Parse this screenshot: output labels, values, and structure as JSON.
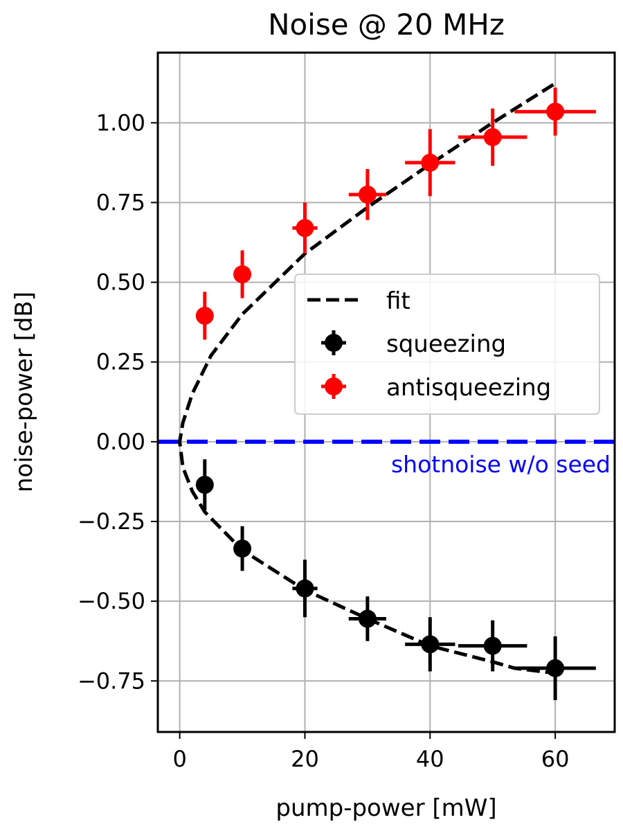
{
  "chart_data": {
    "type": "scatter",
    "title": "Noise @ 20 MHz",
    "xlabel": "pump-power [mW]",
    "ylabel": "noise-power [dB]",
    "xlim": [
      -3.5,
      69.5
    ],
    "ylim": [
      -0.91,
      1.22
    ],
    "xticks": [
      0,
      20,
      40,
      60
    ],
    "yticks": [
      -0.75,
      -0.5,
      -0.25,
      0.0,
      0.25,
      0.5,
      0.75,
      1.0
    ],
    "xtick_labels": [
      "0",
      "20",
      "40",
      "60"
    ],
    "ytick_labels": [
      "−0.75",
      "−0.50",
      "−0.25",
      "0.00",
      "0.25",
      "0.50",
      "0.75",
      "1.00"
    ],
    "grid": true,
    "legend_position": "center-right",
    "series": [
      {
        "name": "fit",
        "kind": "line",
        "style": "dashed",
        "color": "#000000",
        "points": [
          [
            59.7,
            1.12
          ],
          [
            50,
            1.0
          ],
          [
            40,
            0.87
          ],
          [
            30,
            0.735
          ],
          [
            20,
            0.59
          ],
          [
            10,
            0.4
          ],
          [
            5,
            0.27
          ],
          [
            2,
            0.15
          ],
          [
            0.5,
            0.06
          ],
          [
            0,
            0.0
          ],
          [
            0.5,
            -0.08
          ],
          [
            2,
            -0.155
          ],
          [
            4,
            -0.22
          ],
          [
            10,
            -0.34
          ],
          [
            20,
            -0.465
          ],
          [
            30,
            -0.555
          ],
          [
            40,
            -0.64
          ],
          [
            50,
            -0.69
          ],
          [
            53.5,
            -0.71
          ],
          [
            59.7,
            -0.725
          ]
        ]
      },
      {
        "name": "squeezing",
        "kind": "errorbar",
        "color": "#000000",
        "x": [
          4,
          10,
          20,
          30,
          40,
          50,
          60
        ],
        "y": [
          -0.135,
          -0.335,
          -0.46,
          -0.555,
          -0.635,
          -0.64,
          -0.71
        ],
        "xerr": [
          0.4,
          1,
          2,
          3,
          4,
          5.5,
          6.5
        ],
        "yerr": [
          0.08,
          0.07,
          0.09,
          0.07,
          0.085,
          0.08,
          0.1
        ]
      },
      {
        "name": "antisqueezing",
        "kind": "errorbar",
        "color": "#ff0000",
        "x": [
          4,
          10,
          20,
          30,
          40,
          50,
          60
        ],
        "y": [
          0.395,
          0.525,
          0.67,
          0.775,
          0.875,
          0.955,
          1.035
        ],
        "xerr": [
          0.4,
          1,
          2,
          3,
          4,
          5.5,
          6.5
        ],
        "yerr": [
          0.075,
          0.075,
          0.08,
          0.08,
          0.105,
          0.09,
          0.075
        ]
      },
      {
        "name": "shotnoise",
        "kind": "hline",
        "style": "dashed",
        "color": "#0000ff",
        "y": 0.0
      }
    ],
    "legend": [
      "fit",
      "squeezing",
      "antisqueezing"
    ],
    "annotations": [
      {
        "text": "shotnoise w/o seed",
        "color": "#0000ff",
        "anchor_x": 69.5,
        "anchor_y": -0.07
      }
    ]
  }
}
